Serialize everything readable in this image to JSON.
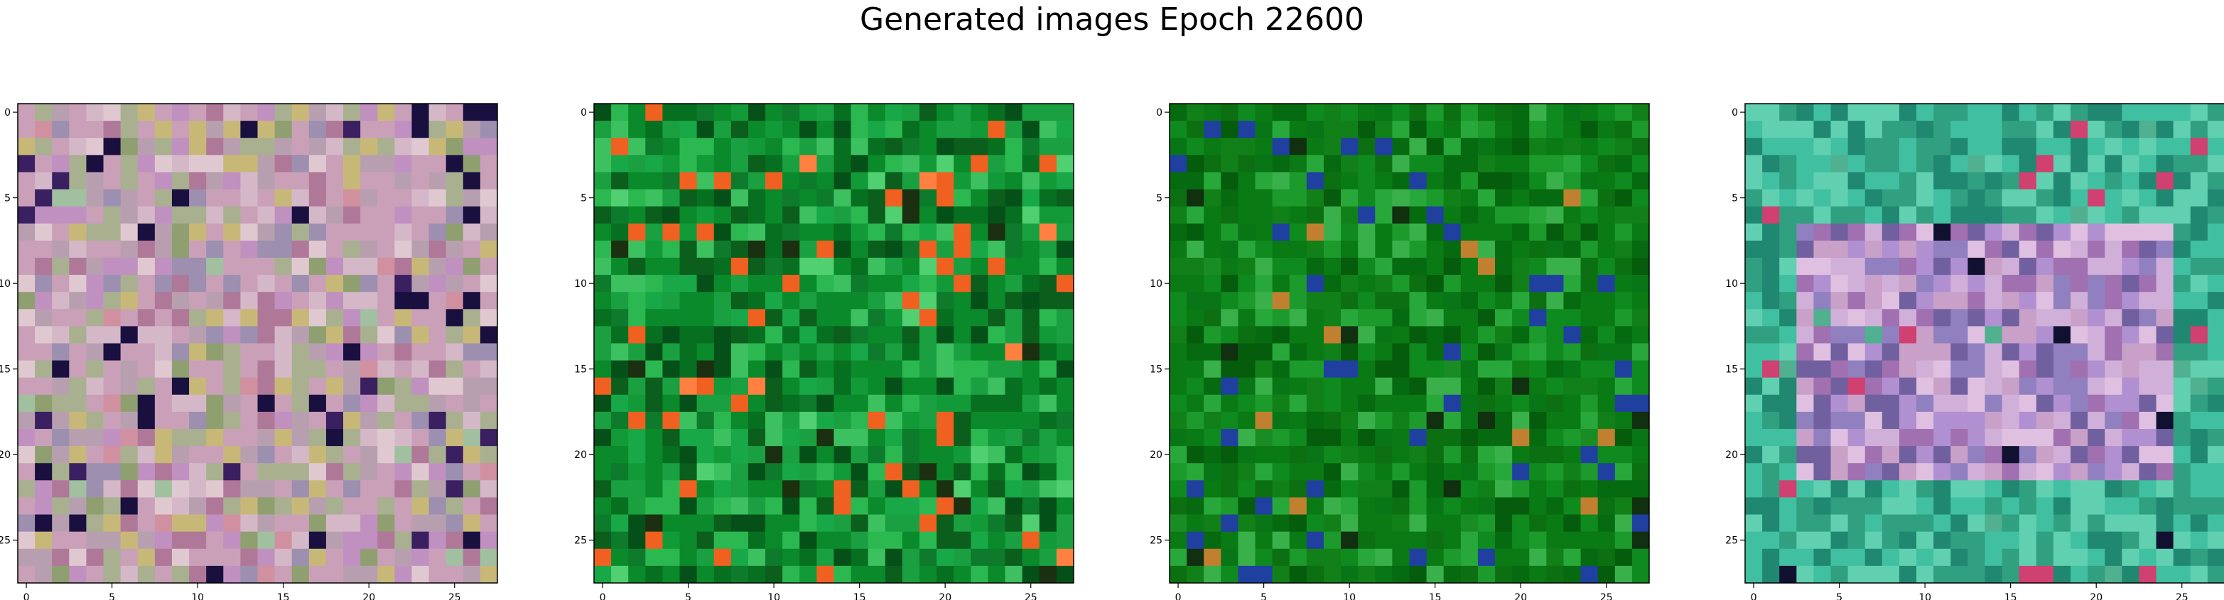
{
  "figure": {
    "title": "Generated images Epoch 22600"
  },
  "colors": {
    "background": "#ffffff",
    "axis": "#000000"
  },
  "chart_data": [
    {
      "type": "heatmap",
      "title": "",
      "xlabel": "",
      "ylabel": "",
      "grid_size": [
        28,
        28
      ],
      "x_ticks": [
        0,
        5,
        10,
        15,
        20,
        25
      ],
      "y_ticks": [
        0,
        5,
        10,
        15,
        20,
        25
      ],
      "xlim": [
        -0.5,
        27.5
      ],
      "ylim": [
        27.5,
        -0.5
      ],
      "grid": false,
      "dominant_palette": "mixed pastel pinks, purples, olive and beige with scattered dark pixels",
      "palette": [
        "#c9a0b8",
        "#b89fb0",
        "#a8b090",
        "#d4b8c8",
        "#9c8fb0",
        "#c8b878",
        "#b07898",
        "#e0c8d0",
        "#8f9f70",
        "#c090c0",
        "#1a1040",
        "#3a2060",
        "#d090a0",
        "#a0c0a0"
      ]
    },
    {
      "type": "heatmap",
      "title": "",
      "xlabel": "",
      "ylabel": "",
      "grid_size": [
        28,
        28
      ],
      "x_ticks": [
        0,
        5,
        10,
        15,
        20,
        25
      ],
      "y_ticks": [
        0,
        5,
        10,
        15,
        20,
        25
      ],
      "xlim": [
        -0.5,
        27.5
      ],
      "ylim": [
        27.5,
        -0.5
      ],
      "grid": false,
      "dominant_palette": "bright and dark greens with a few orange and red pixels",
      "palette": [
        "#0a8a2a",
        "#1aa040",
        "#067020",
        "#2cb850",
        "#0b5e1c",
        "#139a38",
        "#3cc060",
        "#045018",
        "#18a848",
        "#0e7a2c",
        "#f06020",
        "#ff8040",
        "#1a3010",
        "#50d070"
      ]
    },
    {
      "type": "heatmap",
      "title": "",
      "xlabel": "",
      "ylabel": "",
      "grid_size": [
        28,
        28
      ],
      "x_ticks": [
        0,
        5,
        10,
        15,
        20,
        25
      ],
      "y_ticks": [
        0,
        5,
        10,
        15,
        20,
        25
      ],
      "xlim": [
        -0.5,
        27.5
      ],
      "ylim": [
        27.5,
        -0.5
      ],
      "grid": false,
      "dominant_palette": "dark and medium greens with a few blue and tan pixels",
      "palette": [
        "#0a7a14",
        "#0f8a1e",
        "#066a10",
        "#1c9a2c",
        "#045c0c",
        "#128018",
        "#28a83a",
        "#0c7012",
        "#087616",
        "#3ab04a",
        "#2040a0",
        "#c08030",
        "#103010",
        "#1a8c24"
      ]
    },
    {
      "type": "heatmap",
      "title": "",
      "xlabel": "",
      "ylabel": "",
      "grid_size": [
        28,
        28
      ],
      "x_ticks": [
        0,
        5,
        10,
        15,
        20,
        25
      ],
      "y_ticks": [
        0,
        5,
        10,
        15,
        20,
        25
      ],
      "xlim": [
        -0.5,
        27.5
      ],
      "ylim": [
        27.5,
        -0.5
      ],
      "grid": false,
      "dominant_palette": "teal and green border with pastel pink, lavender and purple center",
      "palette": [
        "#30a080",
        "#40c0a0",
        "#208870",
        "#60d0b0",
        "#c8a0c8",
        "#b090d0",
        "#d0b0d8",
        "#9080c0",
        "#e0c0e0",
        "#a070b0",
        "#7060a0",
        "#d04070",
        "#101030",
        "#50b090"
      ]
    }
  ]
}
